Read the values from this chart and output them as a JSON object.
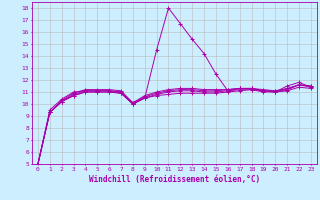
{
  "title": "",
  "xlabel": "Windchill (Refroidissement éolien,°C)",
  "ylabel": "",
  "xlim": [
    -0.5,
    23.5
  ],
  "ylim": [
    5,
    18.5
  ],
  "xticks": [
    0,
    1,
    2,
    3,
    4,
    5,
    6,
    7,
    8,
    9,
    10,
    11,
    12,
    13,
    14,
    15,
    16,
    17,
    18,
    19,
    20,
    21,
    22,
    23
  ],
  "yticks": [
    5,
    6,
    7,
    8,
    9,
    10,
    11,
    12,
    13,
    14,
    15,
    16,
    17,
    18
  ],
  "bg_color": "#cceeff",
  "line_color": "#aa00aa",
  "grid_color": "#bbbbbb",
  "series": [
    [
      5.0,
      9.3,
      10.2,
      10.7,
      11.0,
      11.0,
      11.0,
      10.9,
      10.0,
      10.5,
      10.7,
      10.8,
      10.9,
      10.9,
      10.9,
      10.9,
      11.0,
      11.1,
      11.2,
      11.0,
      11.0,
      11.1,
      11.4,
      11.3
    ],
    [
      5.0,
      9.3,
      10.2,
      10.7,
      11.0,
      11.0,
      11.0,
      10.9,
      10.0,
      10.5,
      10.8,
      11.0,
      11.1,
      11.1,
      11.0,
      11.0,
      11.1,
      11.2,
      11.3,
      11.1,
      11.0,
      11.2,
      11.6,
      11.4
    ],
    [
      5.0,
      9.3,
      10.2,
      10.8,
      11.1,
      11.1,
      11.1,
      11.0,
      10.1,
      10.6,
      10.9,
      11.1,
      11.2,
      11.2,
      11.1,
      11.1,
      11.2,
      11.3,
      11.3,
      11.1,
      11.1,
      11.2,
      11.6,
      11.5
    ],
    [
      5.0,
      9.3,
      10.3,
      10.9,
      11.2,
      11.2,
      11.2,
      11.1,
      10.1,
      10.7,
      11.0,
      11.2,
      11.3,
      11.3,
      11.2,
      11.2,
      11.2,
      11.3,
      11.3,
      11.2,
      11.1,
      11.3,
      11.6,
      11.5
    ],
    [
      5.0,
      9.5,
      10.4,
      11.0,
      11.1,
      11.1,
      11.1,
      11.0,
      10.0,
      10.5,
      14.5,
      18.0,
      16.7,
      15.4,
      14.2,
      12.5,
      11.1,
      11.3,
      11.2,
      11.1,
      11.0,
      11.5,
      11.8,
      11.4
    ]
  ],
  "font_size_ticks": 4.5,
  "font_size_xlabel": 5.5,
  "lw": 0.7,
  "marker_size": 2.5
}
